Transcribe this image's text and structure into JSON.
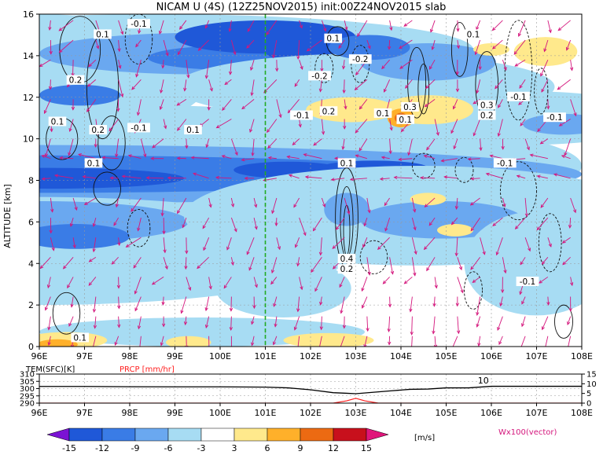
{
  "title": "NICAM U (4S) (12Z25NOV2015) init:00Z24NOV2015 slab",
  "colors": {
    "c_m15": "#7b13d4",
    "c_m12": "#1f58d8",
    "c_m9": "#3a7ce6",
    "c_m6": "#6aa8f0",
    "c_m3": "#a7dcf3",
    "c_p3": "#ffe98c",
    "c_p6": "#ffb02a",
    "c_p9": "#ec6a12",
    "c_p12": "#c8101c",
    "c_p15": "#e0157a",
    "vector": "#d4167c",
    "marker_line": "#22aa22",
    "precip": "#ff2020"
  },
  "chart_data": [
    {
      "type": "heatmap",
      "panel": "main",
      "ylabel": "ALTITUDE [km]",
      "x_ticks": [
        "96E",
        "97E",
        "98E",
        "99E",
        "100E",
        "101E",
        "102E",
        "103E",
        "104E",
        "105E",
        "106E",
        "107E",
        "108E"
      ],
      "y_ticks": [
        "0",
        "2",
        "4",
        "6",
        "8",
        "10",
        "12",
        "14",
        "16"
      ],
      "xlim": [
        96,
        108
      ],
      "ylim": [
        0,
        16
      ],
      "grid": true,
      "vertical_marker_lon": 101,
      "contour_labels": [
        {
          "lon": 97.4,
          "alt": 15.0,
          "text": "0.1"
        },
        {
          "lon": 98.2,
          "alt": 15.5,
          "text": "-0.1"
        },
        {
          "lon": 96.8,
          "alt": 12.8,
          "text": "0.2"
        },
        {
          "lon": 96.4,
          "alt": 10.8,
          "text": "0.1"
        },
        {
          "lon": 97.3,
          "alt": 10.4,
          "text": "0.2"
        },
        {
          "lon": 98.2,
          "alt": 10.5,
          "text": "-0.1"
        },
        {
          "lon": 99.4,
          "alt": 10.4,
          "text": "0.1"
        },
        {
          "lon": 97.2,
          "alt": 8.8,
          "text": "0.1"
        },
        {
          "lon": 102.5,
          "alt": 14.8,
          "text": "0.1"
        },
        {
          "lon": 103.1,
          "alt": 13.8,
          "text": "-0.2"
        },
        {
          "lon": 102.2,
          "alt": 13.0,
          "text": "-0.2"
        },
        {
          "lon": 101.8,
          "alt": 11.1,
          "text": "-0.1"
        },
        {
          "lon": 102.4,
          "alt": 11.3,
          "text": "0.2"
        },
        {
          "lon": 103.6,
          "alt": 11.2,
          "text": "0.1"
        },
        {
          "lon": 104.2,
          "alt": 11.5,
          "text": "0.3"
        },
        {
          "lon": 104.1,
          "alt": 10.9,
          "text": "0.1"
        },
        {
          "lon": 105.6,
          "alt": 15.0,
          "text": "0.1"
        },
        {
          "lon": 105.9,
          "alt": 11.6,
          "text": "0.3"
        },
        {
          "lon": 105.9,
          "alt": 11.1,
          "text": "0.2"
        },
        {
          "lon": 106.6,
          "alt": 12.0,
          "text": "-0.1"
        },
        {
          "lon": 107.4,
          "alt": 11.0,
          "text": "-0.1"
        },
        {
          "lon": 102.8,
          "alt": 8.8,
          "text": "0.1"
        },
        {
          "lon": 106.3,
          "alt": 8.8,
          "text": "-0.1"
        },
        {
          "lon": 102.8,
          "alt": 4.2,
          "text": "0.4"
        },
        {
          "lon": 102.8,
          "alt": 3.7,
          "text": "0.2"
        },
        {
          "lon": 106.8,
          "alt": 3.1,
          "text": "-0.1"
        },
        {
          "lon": 96.9,
          "alt": 0.4,
          "text": "0.1"
        }
      ]
    },
    {
      "type": "line",
      "panel": "surface",
      "left_label": "TEM(SFC)[K]",
      "right_label": "PRCP [mm/hr]",
      "left_ticks": [
        "310",
        "305",
        "300",
        "295",
        "290"
      ],
      "right_ticks": [
        "15",
        "10",
        "5",
        "0"
      ],
      "x_ticks": [
        "96E",
        "97E",
        "98E",
        "99E",
        "100E",
        "101E",
        "102E",
        "103E",
        "104E",
        "105E",
        "106E",
        "107E",
        "108E"
      ],
      "xlim": [
        96,
        108
      ],
      "series": [
        {
          "name": "TEM(SFC)[K]",
          "x": [
            96,
            97,
            98,
            99,
            100,
            101,
            101.5,
            102,
            102.5,
            102.8,
            103,
            103.4,
            103.8,
            104.2,
            104.6,
            105,
            105.5,
            106,
            106.5,
            107,
            108
          ],
          "values": [
            301.5,
            301.5,
            301.3,
            301.2,
            301.2,
            301.0,
            300.5,
            299.2,
            297.2,
            296.8,
            296.5,
            297.5,
            298.5,
            299.5,
            299.7,
            300.5,
            300.5,
            301.6,
            301.6,
            301.6,
            301.6
          ]
        },
        {
          "name": "PRCP [mm/hr]",
          "x": [
            96,
            102.5,
            102.8,
            103.0,
            103.2,
            103.5,
            108
          ],
          "values": [
            0,
            0,
            1.2,
            2.5,
            1.2,
            0,
            0
          ]
        }
      ],
      "annotation": "10"
    }
  ],
  "colorbar": {
    "labels": [
      "-15",
      "-12",
      "-9",
      "-6",
      "-3",
      "3",
      "6",
      "9",
      "12",
      "15"
    ],
    "unit": "[m/s]",
    "vector_note": "Wx100(vector)"
  }
}
